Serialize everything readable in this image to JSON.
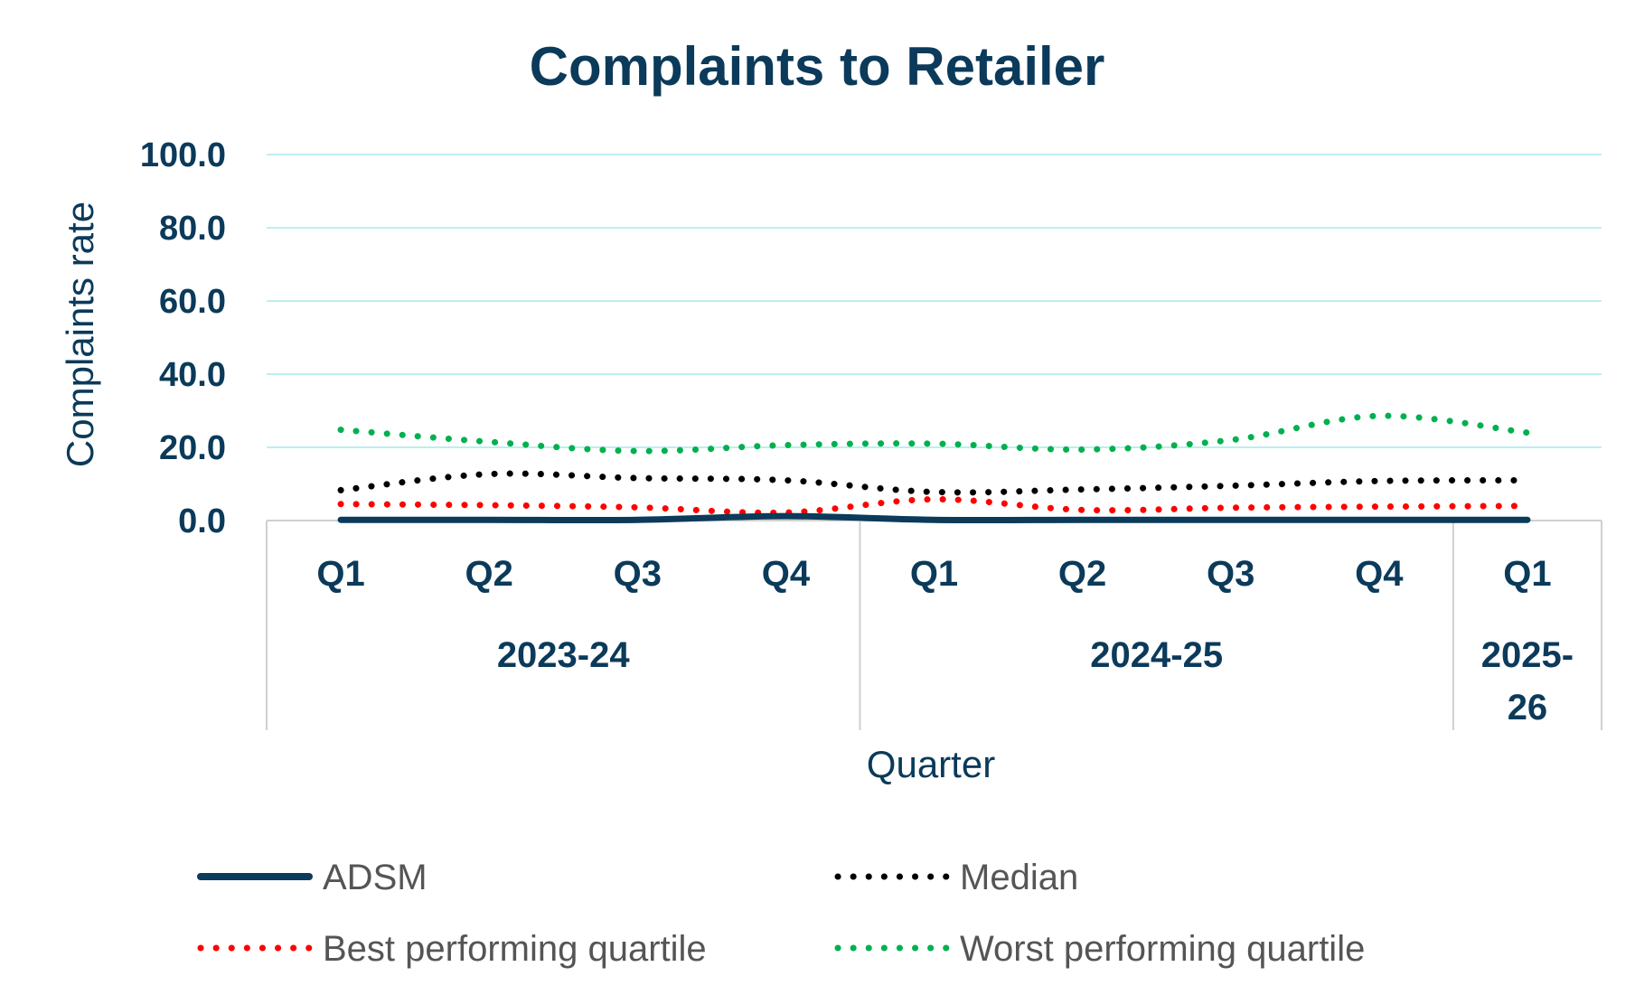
{
  "chart_data": {
    "type": "line",
    "title": "Complaints to Retailer",
    "xlabel": "Quarter",
    "ylabel": "Complaints rate",
    "ylim": [
      0,
      100
    ],
    "y_ticks": [
      "100.0",
      "80.0",
      "60.0",
      "40.0",
      "20.0",
      "0.0"
    ],
    "y_tick_values": [
      100,
      80,
      60,
      40,
      20,
      0
    ],
    "categories": [
      "Q1",
      "Q2",
      "Q3",
      "Q4",
      "Q1",
      "Q2",
      "Q3",
      "Q4",
      "Q1"
    ],
    "groups": [
      {
        "label": "2023-24",
        "label_lines": [
          "2023-24"
        ],
        "count": 4
      },
      {
        "label": "2024-25",
        "label_lines": [
          "2024-25"
        ],
        "count": 4
      },
      {
        "label": "2025-26",
        "label_lines": [
          "2025-",
          "26"
        ],
        "count": 1
      }
    ],
    "grid": true,
    "legend_position": "bottom",
    "series": [
      {
        "name": "ADSM",
        "color": "#0b3a5a",
        "style": "solid",
        "values": [
          0.2,
          0.2,
          0.2,
          1.2,
          0.2,
          0.2,
          0.2,
          0.2,
          0.2
        ]
      },
      {
        "name": "Median",
        "color": "#000000",
        "style": "dotted",
        "values": [
          8.3,
          12.7,
          11.6,
          11.0,
          7.8,
          8.5,
          9.5,
          10.8,
          11.0
        ]
      },
      {
        "name": "Best performing quartile",
        "color": "#ff0000",
        "style": "dotted",
        "values": [
          4.5,
          4.2,
          3.6,
          2.2,
          5.8,
          2.9,
          3.5,
          3.8,
          4.0
        ]
      },
      {
        "name": "Worst performing quartile",
        "color": "#00b050",
        "style": "dotted",
        "values": [
          24.8,
          21.5,
          19.0,
          20.6,
          21.0,
          19.4,
          22.0,
          28.6,
          24.0
        ]
      }
    ]
  }
}
